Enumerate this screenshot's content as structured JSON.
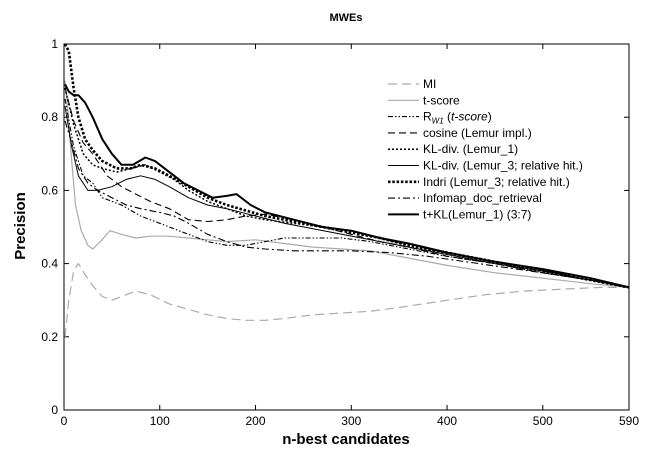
{
  "chart_data": {
    "type": "line",
    "title": "MWEs",
    "xlabel": "n-best candidates",
    "ylabel": "Precision",
    "xlim": [
      0,
      590
    ],
    "ylim": [
      0,
      1
    ],
    "xticks": [
      0,
      100,
      200,
      300,
      400,
      500,
      590
    ],
    "yticks": [
      0,
      0.2,
      0.4,
      0.6,
      0.8,
      1
    ],
    "grid": false,
    "legend_position": "top-right",
    "series": [
      {
        "name": "MI",
        "label_parts": [
          "MI"
        ],
        "color": "#aaaaaa",
        "style": "longdash",
        "points": [
          [
            1,
            0.2
          ],
          [
            5,
            0.3
          ],
          [
            10,
            0.38
          ],
          [
            15,
            0.4
          ],
          [
            22,
            0.37
          ],
          [
            30,
            0.34
          ],
          [
            40,
            0.31
          ],
          [
            50,
            0.3
          ],
          [
            60,
            0.31
          ],
          [
            75,
            0.325
          ],
          [
            90,
            0.315
          ],
          [
            110,
            0.29
          ],
          [
            130,
            0.275
          ],
          [
            150,
            0.26
          ],
          [
            170,
            0.25
          ],
          [
            190,
            0.245
          ],
          [
            210,
            0.245
          ],
          [
            230,
            0.25
          ],
          [
            260,
            0.26
          ],
          [
            290,
            0.265
          ],
          [
            320,
            0.27
          ],
          [
            350,
            0.28
          ],
          [
            400,
            0.3
          ],
          [
            440,
            0.315
          ],
          [
            480,
            0.325
          ],
          [
            520,
            0.33
          ],
          [
            560,
            0.335
          ],
          [
            590,
            0.335
          ]
        ]
      },
      {
        "name": "t-score",
        "label_parts": [
          "t-score"
        ],
        "color": "#aaaaaa",
        "style": "solid",
        "points": [
          [
            1,
            0.9
          ],
          [
            4,
            0.82
          ],
          [
            8,
            0.68
          ],
          [
            12,
            0.56
          ],
          [
            18,
            0.49
          ],
          [
            25,
            0.45
          ],
          [
            30,
            0.44
          ],
          [
            38,
            0.46
          ],
          [
            48,
            0.49
          ],
          [
            60,
            0.48
          ],
          [
            75,
            0.47
          ],
          [
            90,
            0.475
          ],
          [
            110,
            0.475
          ],
          [
            130,
            0.47
          ],
          [
            150,
            0.465
          ],
          [
            170,
            0.46
          ],
          [
            200,
            0.465
          ],
          [
            230,
            0.455
          ],
          [
            260,
            0.445
          ],
          [
            290,
            0.44
          ],
          [
            320,
            0.435
          ],
          [
            360,
            0.415
          ],
          [
            400,
            0.395
          ],
          [
            450,
            0.375
          ],
          [
            500,
            0.36
          ],
          [
            550,
            0.345
          ],
          [
            590,
            0.335
          ]
        ]
      },
      {
        "name": "RW1 (t-score)",
        "label_parts": [
          "R",
          "W1",
          " (",
          "t-score",
          ")"
        ],
        "color": "#000000",
        "style": "dashdotdot",
        "points": [
          [
            1,
            0.85
          ],
          [
            10,
            0.72
          ],
          [
            20,
            0.64
          ],
          [
            30,
            0.62
          ],
          [
            40,
            0.58
          ],
          [
            60,
            0.56
          ],
          [
            80,
            0.53
          ],
          [
            100,
            0.51
          ],
          [
            120,
            0.49
          ],
          [
            150,
            0.46
          ],
          [
            170,
            0.45
          ],
          [
            190,
            0.45
          ],
          [
            210,
            0.46
          ],
          [
            230,
            0.47
          ],
          [
            260,
            0.47
          ],
          [
            290,
            0.47
          ],
          [
            320,
            0.46
          ],
          [
            360,
            0.44
          ],
          [
            400,
            0.42
          ],
          [
            450,
            0.4
          ],
          [
            500,
            0.375
          ],
          [
            550,
            0.355
          ],
          [
            590,
            0.335
          ]
        ]
      },
      {
        "name": "cosine (Lemur impl.)",
        "label_parts": [
          "cosine (Lemur impl.)"
        ],
        "color": "#000000",
        "style": "dash",
        "points": [
          [
            1,
            0.88
          ],
          [
            10,
            0.79
          ],
          [
            20,
            0.73
          ],
          [
            30,
            0.7
          ],
          [
            45,
            0.64
          ],
          [
            60,
            0.61
          ],
          [
            75,
            0.59
          ],
          [
            90,
            0.57
          ],
          [
            110,
            0.55
          ],
          [
            130,
            0.52
          ],
          [
            150,
            0.515
          ],
          [
            170,
            0.52
          ],
          [
            190,
            0.53
          ],
          [
            210,
            0.535
          ],
          [
            240,
            0.52
          ],
          [
            270,
            0.5
          ],
          [
            300,
            0.48
          ],
          [
            330,
            0.46
          ],
          [
            360,
            0.445
          ],
          [
            400,
            0.42
          ],
          [
            450,
            0.4
          ],
          [
            500,
            0.375
          ],
          [
            550,
            0.355
          ],
          [
            590,
            0.335
          ]
        ]
      },
      {
        "name": "KL-div. (Lemur_1)",
        "label_parts": [
          "KL-div. (Lemur_1)"
        ],
        "color": "#000000",
        "style": "dot",
        "points": [
          [
            1,
            0.88
          ],
          [
            10,
            0.78
          ],
          [
            20,
            0.7
          ],
          [
            30,
            0.67
          ],
          [
            40,
            0.66
          ],
          [
            55,
            0.65
          ],
          [
            70,
            0.66
          ],
          [
            85,
            0.67
          ],
          [
            100,
            0.65
          ],
          [
            115,
            0.63
          ],
          [
            130,
            0.6
          ],
          [
            150,
            0.57
          ],
          [
            170,
            0.55
          ],
          [
            190,
            0.53
          ],
          [
            210,
            0.52
          ],
          [
            240,
            0.51
          ],
          [
            270,
            0.5
          ],
          [
            300,
            0.49
          ],
          [
            330,
            0.47
          ],
          [
            360,
            0.45
          ],
          [
            400,
            0.43
          ],
          [
            450,
            0.405
          ],
          [
            500,
            0.38
          ],
          [
            550,
            0.36
          ],
          [
            590,
            0.335
          ]
        ]
      },
      {
        "name": "KL-div. (Lemur_3; relative hit.)",
        "label_parts": [
          "KL-div. (Lemur_3; relative hit.)"
        ],
        "color": "#000000",
        "style": "solid-thin",
        "points": [
          [
            1,
            0.83
          ],
          [
            8,
            0.72
          ],
          [
            15,
            0.64
          ],
          [
            25,
            0.6
          ],
          [
            35,
            0.6
          ],
          [
            50,
            0.61
          ],
          [
            65,
            0.63
          ],
          [
            80,
            0.64
          ],
          [
            95,
            0.63
          ],
          [
            110,
            0.61
          ],
          [
            130,
            0.58
          ],
          [
            150,
            0.56
          ],
          [
            170,
            0.55
          ],
          [
            200,
            0.53
          ],
          [
            230,
            0.51
          ],
          [
            260,
            0.495
          ],
          [
            290,
            0.48
          ],
          [
            320,
            0.465
          ],
          [
            360,
            0.445
          ],
          [
            400,
            0.425
          ],
          [
            450,
            0.4
          ],
          [
            500,
            0.38
          ],
          [
            550,
            0.355
          ],
          [
            590,
            0.335
          ]
        ]
      },
      {
        "name": "Indri (Lemur_3; relative hit.)",
        "label_parts": [
          "Indri (Lemur_3; relative hit.)"
        ],
        "color": "#000000",
        "style": "thickdot",
        "points": [
          [
            1,
            1.0
          ],
          [
            5,
            0.98
          ],
          [
            10,
            0.88
          ],
          [
            15,
            0.8
          ],
          [
            22,
            0.74
          ],
          [
            30,
            0.71
          ],
          [
            40,
            0.68
          ],
          [
            55,
            0.66
          ],
          [
            70,
            0.66
          ],
          [
            80,
            0.67
          ],
          [
            95,
            0.66
          ],
          [
            110,
            0.64
          ],
          [
            130,
            0.61
          ],
          [
            150,
            0.58
          ],
          [
            170,
            0.56
          ],
          [
            190,
            0.545
          ],
          [
            210,
            0.53
          ],
          [
            240,
            0.515
          ],
          [
            270,
            0.5
          ],
          [
            300,
            0.485
          ],
          [
            330,
            0.47
          ],
          [
            360,
            0.45
          ],
          [
            400,
            0.43
          ],
          [
            450,
            0.405
          ],
          [
            500,
            0.38
          ],
          [
            550,
            0.355
          ],
          [
            590,
            0.335
          ]
        ]
      },
      {
        "name": "Infomap_doc_retrieval",
        "label_parts": [
          "Infomap_doc_retrieval"
        ],
        "color": "#000000",
        "style": "dashdot",
        "points": [
          [
            1,
            0.79
          ],
          [
            8,
            0.73
          ],
          [
            15,
            0.66
          ],
          [
            25,
            0.62
          ],
          [
            35,
            0.6
          ],
          [
            50,
            0.58
          ],
          [
            65,
            0.56
          ],
          [
            80,
            0.55
          ],
          [
            100,
            0.54
          ],
          [
            115,
            0.53
          ],
          [
            130,
            0.51
          ],
          [
            150,
            0.48
          ],
          [
            170,
            0.46
          ],
          [
            190,
            0.445
          ],
          [
            210,
            0.44
          ],
          [
            240,
            0.435
          ],
          [
            270,
            0.435
          ],
          [
            300,
            0.435
          ],
          [
            340,
            0.43
          ],
          [
            380,
            0.42
          ],
          [
            420,
            0.405
          ],
          [
            460,
            0.39
          ],
          [
            500,
            0.375
          ],
          [
            550,
            0.355
          ],
          [
            590,
            0.335
          ]
        ]
      },
      {
        "name": "t+KL(Lemur_1) (3:7)",
        "label_parts": [
          "t+KL(Lemur_1) (3:7)"
        ],
        "color": "#000000",
        "style": "thick",
        "points": [
          [
            1,
            0.89
          ],
          [
            5,
            0.87
          ],
          [
            10,
            0.86
          ],
          [
            15,
            0.86
          ],
          [
            22,
            0.84
          ],
          [
            30,
            0.8
          ],
          [
            40,
            0.74
          ],
          [
            50,
            0.7
          ],
          [
            60,
            0.67
          ],
          [
            72,
            0.67
          ],
          [
            85,
            0.69
          ],
          [
            95,
            0.68
          ],
          [
            110,
            0.65
          ],
          [
            125,
            0.62
          ],
          [
            140,
            0.6
          ],
          [
            155,
            0.58
          ],
          [
            170,
            0.585
          ],
          [
            180,
            0.59
          ],
          [
            195,
            0.56
          ],
          [
            210,
            0.54
          ],
          [
            240,
            0.52
          ],
          [
            270,
            0.5
          ],
          [
            300,
            0.49
          ],
          [
            330,
            0.47
          ],
          [
            360,
            0.455
          ],
          [
            400,
            0.43
          ],
          [
            450,
            0.405
          ],
          [
            500,
            0.385
          ],
          [
            550,
            0.36
          ],
          [
            590,
            0.335
          ]
        ]
      }
    ]
  }
}
